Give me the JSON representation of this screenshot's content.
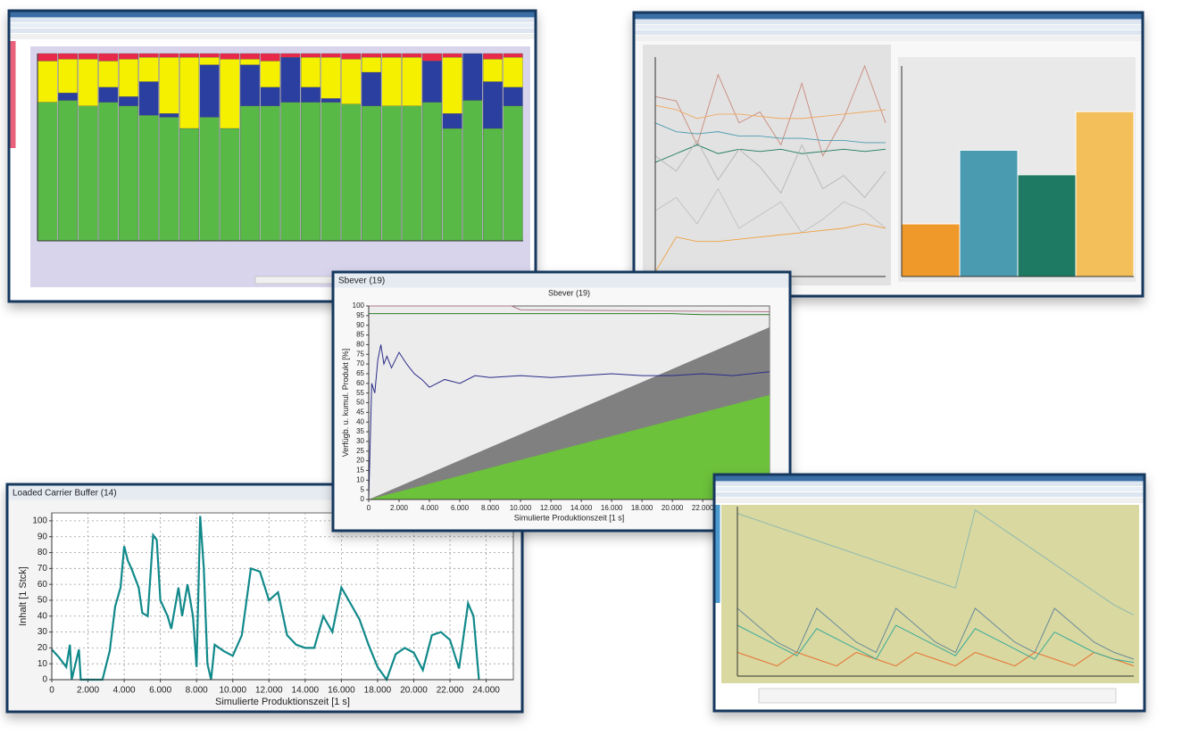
{
  "top_left": {
    "chart_data": {
      "type": "bar",
      "stacked": true,
      "ylim": [
        0,
        100
      ],
      "series": [
        {
          "color": "#58b947",
          "values": [
            74,
            75,
            72,
            74,
            72,
            67,
            66,
            60,
            66,
            60,
            72,
            72,
            74,
            74,
            74,
            73,
            72,
            72,
            72,
            74,
            60,
            75,
            60,
            72
          ]
        },
        {
          "color": "#2b3fa0",
          "values": [
            0,
            4,
            0,
            8,
            5,
            18,
            2,
            0,
            28,
            0,
            22,
            10,
            24,
            8,
            2,
            0,
            18,
            0,
            0,
            22,
            8,
            25,
            25,
            10
          ]
        },
        {
          "color": "#f5f000",
          "values": [
            22,
            18,
            25,
            14,
            20,
            13,
            30,
            38,
            4,
            37,
            3,
            14,
            0,
            16,
            22,
            24,
            8,
            26,
            26,
            0,
            30,
            0,
            12,
            16
          ]
        },
        {
          "color": "#e8294a",
          "values": [
            4,
            3,
            3,
            4,
            3,
            2,
            2,
            2,
            2,
            3,
            3,
            4,
            2,
            2,
            2,
            3,
            2,
            2,
            2,
            4,
            2,
            0,
            3,
            2
          ]
        }
      ]
    }
  },
  "top_right": {
    "chart_data": [
      {
        "type": "line",
        "x": [
          1,
          2,
          3,
          4,
          5,
          6,
          7,
          8,
          9,
          10,
          11,
          12
        ],
        "xlim": [
          1,
          12
        ],
        "ylim": [
          0,
          100
        ],
        "series": [
          {
            "color": "#c98a7a",
            "values": [
              82,
              80,
              60,
              92,
              70,
              75,
              60,
              88,
              55,
              72,
              96,
              70
            ]
          },
          {
            "color": "#f0a860",
            "values": [
              78,
              76,
              72,
              74,
              74,
              73,
              72,
              72,
              73,
              74,
              75,
              76
            ]
          },
          {
            "color": "#4a9bb0",
            "values": [
              70,
              66,
              65,
              66,
              64,
              64,
              63,
              63,
              62,
              62,
              61,
              61
            ]
          },
          {
            "color": "#1a7a60",
            "values": [
              52,
              56,
              60,
              56,
              58,
              57,
              58,
              56,
              57,
              58,
              57,
              58
            ]
          },
          {
            "color": "#b5b5b5",
            "values": [
              55,
              48,
              62,
              44,
              58,
              50,
              38,
              60,
              40,
              46,
              36,
              48
            ]
          },
          {
            "color": "#c0c0c0",
            "values": [
              30,
              36,
              24,
              40,
              22,
              28,
              34,
              20,
              26,
              34,
              30,
              22
            ]
          },
          {
            "color": "#f0a040",
            "values": [
              2,
              18,
              16,
              16,
              17,
              18,
              19,
              20,
              21,
              22,
              24,
              22
            ]
          }
        ]
      },
      {
        "type": "bar",
        "ylim": [
          0,
          120
        ],
        "values": [
          30,
          72,
          58,
          94
        ],
        "colors": [
          "#f0992b",
          "#4a9bb0",
          "#1e7a62",
          "#f3bf5a"
        ]
      }
    ]
  },
  "bottom_left": {
    "window_title": "Loaded Carrier Buffer (14)",
    "chart_data": {
      "type": "line",
      "grid": true,
      "x_label": "Simulierte Produktionszeit [1 s]",
      "y_label": "Inhalt [1 Stck]",
      "xlim": [
        0,
        25500
      ],
      "ylim": [
        0,
        105
      ],
      "xticks": [
        0,
        {
          "value": 2000,
          "label": "2.000"
        },
        {
          "value": 4000,
          "label": "4.000"
        },
        {
          "value": 6000,
          "label": "6.000"
        },
        {
          "value": 8000,
          "label": "8.000"
        },
        {
          "value": 10000,
          "label": "10.000"
        },
        {
          "value": 12000,
          "label": "12.000"
        },
        {
          "value": 14000,
          "label": "14.000"
        },
        {
          "value": 16000,
          "label": "16.000"
        },
        {
          "value": 18000,
          "label": "18.000"
        },
        {
          "value": 20000,
          "label": "20.000"
        },
        {
          "value": 22000,
          "label": "22.000"
        },
        {
          "value": 24000,
          "label": "24.000"
        }
      ],
      "yticks": [
        0,
        10,
        20,
        30,
        40,
        50,
        60,
        70,
        80,
        90,
        100
      ],
      "x": [
        0,
        400,
        800,
        1000,
        1100,
        1500,
        1600,
        2800,
        3200,
        3500,
        3800,
        4000,
        4200,
        4400,
        4800,
        5000,
        5300,
        5600,
        5800,
        6000,
        6200,
        6400,
        6600,
        7000,
        7200,
        7500,
        7800,
        8000,
        8200,
        8400,
        8600,
        8800,
        9000,
        9500,
        10000,
        10500,
        11000,
        11500,
        12000,
        12500,
        13000,
        13500,
        14000,
        14500,
        15000,
        15500,
        16000,
        16500,
        17000,
        17500,
        18000,
        18500,
        19000,
        19500,
        20000,
        20500,
        21000,
        21500,
        22000,
        22500,
        23000,
        23300,
        23600
      ],
      "series": [
        {
          "color": "#11898a",
          "values": [
            19,
            14,
            8,
            22,
            0,
            19,
            0,
            0,
            18,
            46,
            58,
            84,
            75,
            70,
            58,
            42,
            40,
            91,
            88,
            50,
            45,
            40,
            32,
            58,
            40,
            60,
            40,
            8,
            103,
            70,
            10,
            0,
            22,
            18,
            15,
            28,
            70,
            68,
            50,
            55,
            28,
            22,
            20,
            20,
            40,
            30,
            58,
            48,
            38,
            22,
            8,
            0,
            16,
            20,
            17,
            6,
            28,
            30,
            25,
            7,
            48,
            40,
            0
          ]
        }
      ]
    }
  },
  "middle": {
    "window_title": "Sbever (19)",
    "chart_data": {
      "type": "line",
      "title": "Sbever (19)",
      "x_label": "Simulierte Produktionszeit [1 s]",
      "y_label": "Verfügb. u. kumul. Produkt [%]",
      "xlim": [
        0,
        26400
      ],
      "ylim": [
        0,
        100
      ],
      "xticks": [
        0,
        {
          "value": 2000,
          "label": "2.000"
        },
        {
          "value": 4000,
          "label": "4.000"
        },
        {
          "value": 6000,
          "label": "6.000"
        },
        {
          "value": 8000,
          "label": "8.000"
        },
        {
          "value": 10000,
          "label": "10.000"
        },
        {
          "value": 12000,
          "label": "12.000"
        },
        {
          "value": 14000,
          "label": "14.000"
        },
        {
          "value": 16000,
          "label": "16.000"
        },
        {
          "value": 18000,
          "label": "18.000"
        },
        {
          "value": 20000,
          "label": "20.000"
        },
        {
          "value": 22000,
          "label": "22.000"
        }
      ],
      "yticks": [
        0,
        5,
        10,
        15,
        20,
        25,
        30,
        35,
        40,
        45,
        50,
        55,
        60,
        65,
        70,
        75,
        80,
        85,
        90,
        95,
        100
      ],
      "series": [
        {
          "color": "#808080",
          "area": true,
          "x": [
            0,
            26400
          ],
          "values": [
            0,
            89
          ]
        },
        {
          "color": "#6cc23a",
          "area": true,
          "x": [
            0,
            26400
          ],
          "values": [
            0,
            54
          ]
        },
        {
          "color": "#b07a8a",
          "x": [
            0,
            9400,
            10000,
            26400
          ],
          "values": [
            100,
            100,
            98,
            97
          ]
        },
        {
          "color": "#2f7a2a",
          "x": [
            0,
            20000,
            22000,
            26400
          ],
          "values": [
            96,
            96,
            95.5,
            95.5
          ]
        },
        {
          "color": "#2a2a8a",
          "x": [
            0,
            200,
            400,
            600,
            800,
            1000,
            1200,
            1500,
            2000,
            2500,
            3000,
            3500,
            4000,
            5000,
            6000,
            7000,
            8000,
            10000,
            12000,
            14000,
            16000,
            18000,
            20000,
            22000,
            24000,
            26400
          ],
          "values": [
            0,
            60,
            55,
            72,
            80,
            70,
            74,
            68,
            76,
            70,
            65,
            62,
            58,
            62,
            60,
            64,
            63,
            64,
            63,
            64,
            65,
            64,
            64,
            65,
            64,
            66
          ]
        }
      ]
    }
  },
  "bottom_right": {
    "chart_data": {
      "type": "line",
      "x": [
        0,
        1,
        2,
        3,
        4,
        5,
        6,
        7,
        8,
        9,
        10,
        11,
        12,
        13,
        14,
        15,
        16,
        17,
        18,
        19,
        20
      ],
      "xlim": [
        0,
        20
      ],
      "ylim": [
        0,
        100
      ],
      "series": [
        {
          "color": "#8fb8b0",
          "values": [
            96,
            92,
            88,
            84,
            80,
            76,
            72,
            68,
            64,
            60,
            56,
            52,
            98,
            90,
            82,
            74,
            66,
            58,
            50,
            42,
            36
          ]
        },
        {
          "color": "#6a8a9a",
          "values": [
            40,
            30,
            20,
            14,
            40,
            30,
            20,
            14,
            40,
            30,
            20,
            14,
            40,
            30,
            20,
            14,
            40,
            30,
            20,
            14,
            10
          ]
        },
        {
          "color": "#e87030",
          "values": [
            14,
            10,
            6,
            14,
            10,
            6,
            14,
            10,
            6,
            14,
            10,
            6,
            14,
            10,
            6,
            14,
            10,
            6,
            14,
            10,
            6
          ]
        },
        {
          "color": "#3aaa9a",
          "values": [
            30,
            24,
            18,
            12,
            28,
            22,
            16,
            10,
            30,
            24,
            18,
            12,
            28,
            22,
            16,
            10,
            26,
            20,
            14,
            10,
            8
          ]
        }
      ]
    }
  }
}
